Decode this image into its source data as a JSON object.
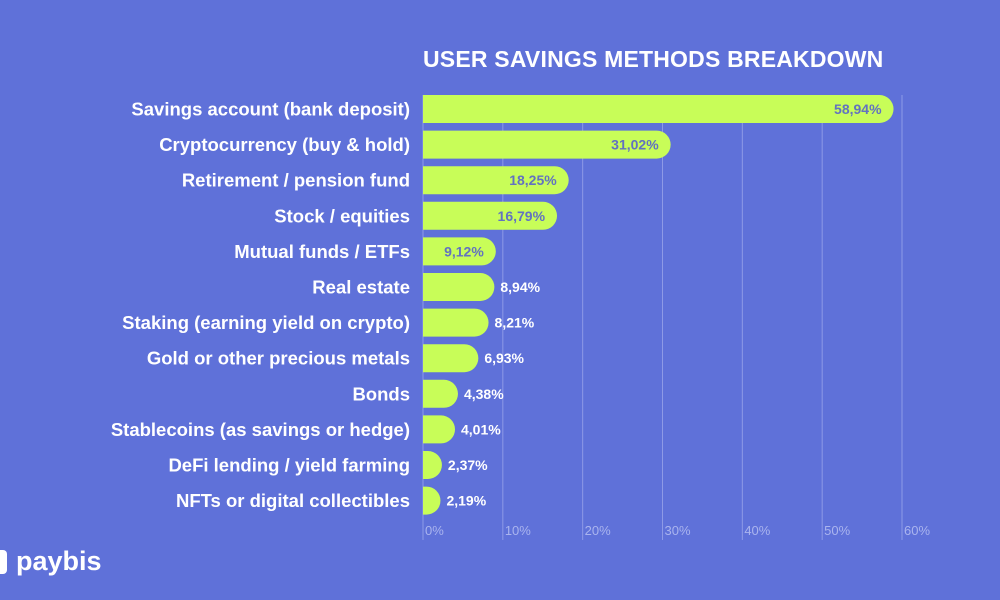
{
  "brand": {
    "name": "paybis"
  },
  "chart_data": {
    "type": "bar",
    "orientation": "horizontal",
    "title": "USER SAVINGS METHODS BREAKDOWN",
    "categories": [
      "Savings account (bank deposit)",
      "Cryptocurrency (buy & hold)",
      "Retirement / pension fund",
      "Stock / equities",
      "Mutual funds / ETFs",
      "Real estate",
      "Staking (earning yield on crypto)",
      "Gold or other precious metals",
      "Bonds",
      "Stablecoins (as savings or hedge)",
      "DeFi lending / yield farming",
      "NFTs or digital collectibles"
    ],
    "values": [
      58.94,
      31.02,
      18.25,
      16.79,
      9.12,
      8.94,
      8.21,
      6.93,
      4.38,
      4.01,
      2.37,
      2.19
    ],
    "value_labels": [
      "58,94%",
      "31,02%",
      "18,25%",
      "16,79%",
      "9,12%",
      "8,94%",
      "8,21%",
      "6,93%",
      "4,38%",
      "4,01%",
      "2,37%",
      "2,19%"
    ],
    "xlim": [
      0,
      60
    ],
    "x_ticks": [
      "0%",
      "10%",
      "20%",
      "30%",
      "40%",
      "50%",
      "60%"
    ],
    "xlabel": "",
    "ylabel": "",
    "grid": true,
    "colors": {
      "bar": "#c8fd58",
      "background": "#5f71d9",
      "label_inside": "#6272c0",
      "label_outside": "#ffffff"
    }
  }
}
